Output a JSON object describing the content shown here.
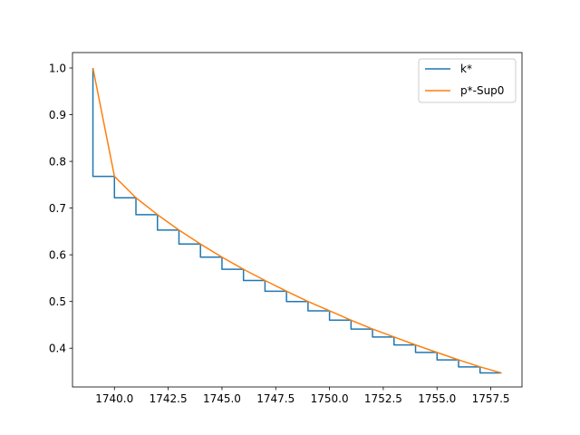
{
  "chart_data": {
    "type": "line",
    "title": "",
    "xlabel": "",
    "ylabel": "",
    "xlim": [
      1738.05,
      1758.95
    ],
    "ylim": [
      0.317,
      1.033
    ],
    "grid": false,
    "legend_position": "top-right",
    "x_ticks": [
      1740.0,
      1742.5,
      1745.0,
      1747.5,
      1750.0,
      1752.5,
      1755.0,
      1757.5
    ],
    "x_tick_labels": [
      "1740.0",
      "1742.5",
      "1745.0",
      "1747.5",
      "1750.0",
      "1752.5",
      "1755.0",
      "1757.5"
    ],
    "y_ticks": [
      0.4,
      0.5,
      0.6,
      0.7,
      0.8,
      0.9,
      1.0
    ],
    "y_tick_labels": [
      "0.4",
      "0.5",
      "0.6",
      "0.7",
      "0.8",
      "0.9",
      "1.0"
    ],
    "x": [
      1739,
      1740,
      1741,
      1742,
      1743,
      1744,
      1745,
      1746,
      1747,
      1748,
      1749,
      1750,
      1751,
      1752,
      1753,
      1754,
      1755,
      1756,
      1757,
      1758
    ],
    "series": [
      {
        "name": "k*",
        "style": "step",
        "color": "#1f77b4",
        "values": [
          1.0,
          0.768,
          0.722,
          0.686,
          0.653,
          0.623,
          0.595,
          0.569,
          0.545,
          0.522,
          0.5,
          0.48,
          0.46,
          0.441,
          0.424,
          0.407,
          0.391,
          0.375,
          0.36,
          0.347
        ]
      },
      {
        "name": "p*-Sup0",
        "style": "line",
        "color": "#ff7f0e",
        "values": [
          1.0,
          0.768,
          0.722,
          0.686,
          0.653,
          0.623,
          0.595,
          0.569,
          0.545,
          0.522,
          0.5,
          0.48,
          0.46,
          0.441,
          0.424,
          0.407,
          0.391,
          0.375,
          0.36,
          0.347
        ]
      }
    ]
  }
}
